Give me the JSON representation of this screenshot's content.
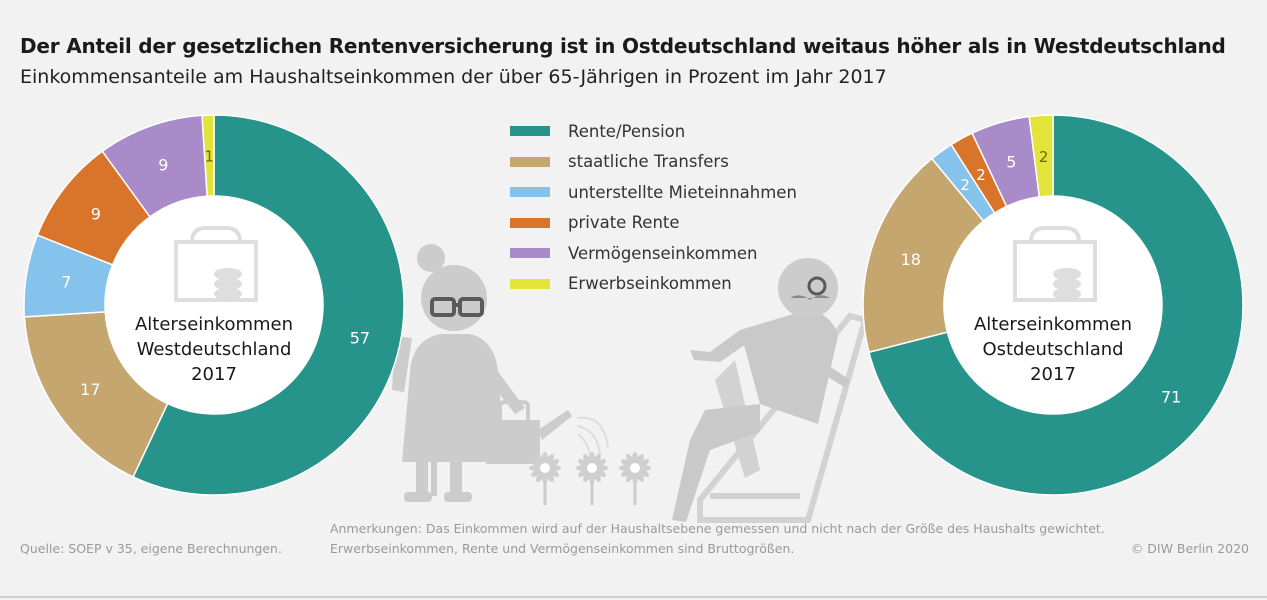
{
  "header": {
    "title": "Der Anteil der gesetzlichen Rentenversicherung ist in Ostdeutschland weitaus höher als in Westdeutschland",
    "subtitle": "Einkommensanteile am Haushaltseinkommen der über 65-Jährigen in Prozent im Jahr 2017"
  },
  "chart_data": [
    {
      "type": "pie",
      "donut": true,
      "center_label": [
        "Alterseinkommen",
        "Westdeutschland",
        "2017"
      ],
      "categories": [
        "Rente/Pension",
        "staatliche Transfers",
        "unterstellte Mieteinnahmen",
        "private Rente",
        "Vermögenseinkommen",
        "Erwerbseinkommen"
      ],
      "values": [
        57,
        17,
        7,
        9,
        9,
        1
      ],
      "colors": [
        "#26948a",
        "#c6a66f",
        "#86c3ec",
        "#d9742b",
        "#a98bc9",
        "#e3e33a"
      ]
    },
    {
      "type": "pie",
      "donut": true,
      "center_label": [
        "Alterseinkommen",
        "Ostdeutschland",
        "2017"
      ],
      "categories": [
        "Rente/Pension",
        "staatliche Transfers",
        "unterstellte Mieteinnahmen",
        "private Rente",
        "Vermögenseinkommen",
        "Erwerbseinkommen"
      ],
      "values": [
        71,
        18,
        2,
        2,
        5,
        2
      ],
      "colors": [
        "#26948a",
        "#c6a66f",
        "#86c3ec",
        "#d9742b",
        "#a98bc9",
        "#e3e33a"
      ]
    }
  ],
  "legend": [
    {
      "label": "Rente/Pension",
      "color": "#26948a"
    },
    {
      "label": "staatliche Transfers",
      "color": "#c6a66f"
    },
    {
      "label": "unterstellte Mieteinnahmen",
      "color": "#86c3ec"
    },
    {
      "label": "private Rente",
      "color": "#d9742b"
    },
    {
      "label": "Vermögenseinkommen",
      "color": "#a98bc9"
    },
    {
      "label": "Erwerbseinkommen",
      "color": "#e3e33a"
    }
  ],
  "footer": {
    "source": "Quelle: SOEP v 35, eigene Berechnungen.",
    "note": "Anmerkungen: Das Einkommen wird auf der Haushaltsebene gemessen und nicht nach der Größe des Haushalts gewichtet. Erwerbseinkommen, Rente und Vermögenseinkommen sind Bruttogrößen.",
    "copyright": "© DIW Berlin 2020"
  }
}
